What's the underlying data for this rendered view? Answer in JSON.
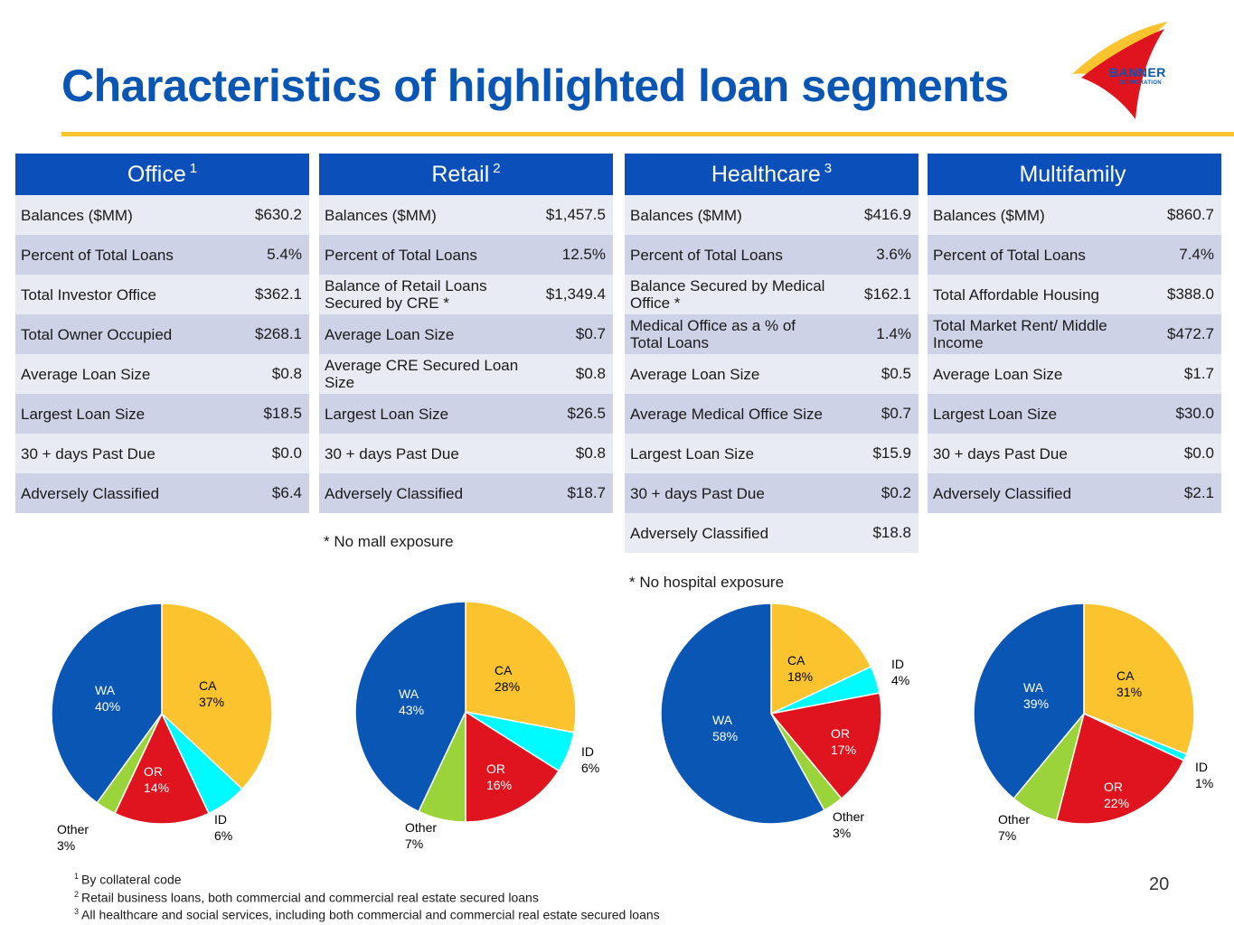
{
  "title": "Characteristics of highlighted loan segments",
  "logo": {
    "name": "BANNER",
    "subtitle": "CORPORATION"
  },
  "colors": {
    "CA": "#fbc42e",
    "ID": "#00fbff",
    "OR": "#e0141e",
    "Other": "#9ad43a",
    "WA": "#0a56b4"
  },
  "tables": [
    {
      "title": "Office",
      "sup": "1",
      "rows": [
        {
          "label": "Balances ($MM)",
          "value": "$630.2"
        },
        {
          "label": "Percent of Total Loans",
          "value": "5.4%"
        },
        {
          "label": "Total Investor Office",
          "value": "$362.1"
        },
        {
          "label": "Total Owner Occupied",
          "value": "$268.1"
        },
        {
          "label": "Average Loan Size",
          "value": "$0.8"
        },
        {
          "label": "Largest Loan Size",
          "value": "$18.5"
        },
        {
          "label": "30 + days Past Due",
          "value": "$0.0"
        },
        {
          "label": "Adversely Classified",
          "value": "$6.4"
        }
      ],
      "note": ""
    },
    {
      "title": "Retail",
      "sup": "2",
      "rows": [
        {
          "label": "Balances ($MM)",
          "value": "$1,457.5"
        },
        {
          "label": "Percent of Total Loans",
          "value": "12.5%"
        },
        {
          "label": "Balance of Retail Loans Secured by CRE *",
          "value": "$1,349.4"
        },
        {
          "label": "Average Loan Size",
          "value": "$0.7"
        },
        {
          "label": "Average CRE Secured Loan Size",
          "value": "$0.8"
        },
        {
          "label": "Largest Loan Size",
          "value": "$26.5"
        },
        {
          "label": "30 + days Past Due",
          "value": "$0.8"
        },
        {
          "label": "Adversely Classified",
          "value": "$18.7"
        }
      ],
      "note": "* No mall exposure"
    },
    {
      "title": "Healthcare",
      "sup": "3",
      "rows": [
        {
          "label": "Balances ($MM)",
          "value": "$416.9"
        },
        {
          "label": "Percent of Total Loans",
          "value": "3.6%"
        },
        {
          "label": "Balance Secured by Medical Office *",
          "value": "$162.1"
        },
        {
          "label": "Medical Office as a % of Total Loans",
          "value": "1.4%"
        },
        {
          "label": "Average Loan Size",
          "value": "$0.5"
        },
        {
          "label": "Average Medical Office Size",
          "value": "$0.7"
        },
        {
          "label": "Largest Loan Size",
          "value": "$15.9"
        },
        {
          "label": "30 + days Past Due",
          "value": "$0.2"
        },
        {
          "label": "Adversely Classified",
          "value": "$18.8"
        }
      ],
      "note": "* No hospital exposure"
    },
    {
      "title": "Multifamily",
      "sup": "",
      "rows": [
        {
          "label": "Balances ($MM)",
          "value": "$860.7"
        },
        {
          "label": "Percent of Total Loans",
          "value": "7.4%"
        },
        {
          "label": "Total Affordable Housing",
          "value": "$388.0"
        },
        {
          "label": "Total Market Rent/ Middle Income",
          "value": "$472.7"
        },
        {
          "label": "Average Loan Size",
          "value": "$1.7"
        },
        {
          "label": "Largest Loan Size",
          "value": "$30.0"
        },
        {
          "label": "30 + days Past Due",
          "value": "$0.0"
        },
        {
          "label": "Adversely Classified",
          "value": "$2.1"
        }
      ],
      "note": ""
    }
  ],
  "chart_data": [
    {
      "type": "pie",
      "title": "Office",
      "slices": [
        {
          "label": "CA",
          "value": 37,
          "text": "37%"
        },
        {
          "label": "ID",
          "value": 6,
          "text": "6%"
        },
        {
          "label": "OR",
          "value": 14,
          "text": "14%"
        },
        {
          "label": "Other",
          "value": 3,
          "text": "3%"
        },
        {
          "label": "WA",
          "value": 40,
          "text": "40%"
        }
      ]
    },
    {
      "type": "pie",
      "title": "Retail",
      "slices": [
        {
          "label": "CA",
          "value": 28,
          "text": "28%"
        },
        {
          "label": "ID",
          "value": 6,
          "text": "6%"
        },
        {
          "label": "OR",
          "value": 16,
          "text": "16%"
        },
        {
          "label": "Other",
          "value": 7,
          "text": "7%"
        },
        {
          "label": "WA",
          "value": 43,
          "text": "43%"
        }
      ]
    },
    {
      "type": "pie",
      "title": "Healthcare",
      "slices": [
        {
          "label": "CA",
          "value": 18,
          "text": "18%"
        },
        {
          "label": "ID",
          "value": 4,
          "text": "4%"
        },
        {
          "label": "OR",
          "value": 17,
          "text": "17%"
        },
        {
          "label": "Other",
          "value": 3,
          "text": "3%"
        },
        {
          "label": "WA",
          "value": 58,
          "text": "58%"
        }
      ]
    },
    {
      "type": "pie",
      "title": "Multifamily",
      "slices": [
        {
          "label": "CA",
          "value": 31,
          "text": "31%"
        },
        {
          "label": "ID",
          "value": 1,
          "text": "1%"
        },
        {
          "label": "OR",
          "value": 22,
          "text": "22%"
        },
        {
          "label": "Other",
          "value": 7,
          "text": "7%"
        },
        {
          "label": "WA",
          "value": 39,
          "text": "39%"
        }
      ]
    }
  ],
  "footnotes": [
    {
      "num": "1",
      "text": "By collateral code"
    },
    {
      "num": "2",
      "text": "Retail business loans, both commercial and commercial real estate secured loans"
    },
    {
      "num": "3",
      "text": "All healthcare and social services, including both commercial and commercial real estate secured loans"
    }
  ],
  "page_number": "20"
}
